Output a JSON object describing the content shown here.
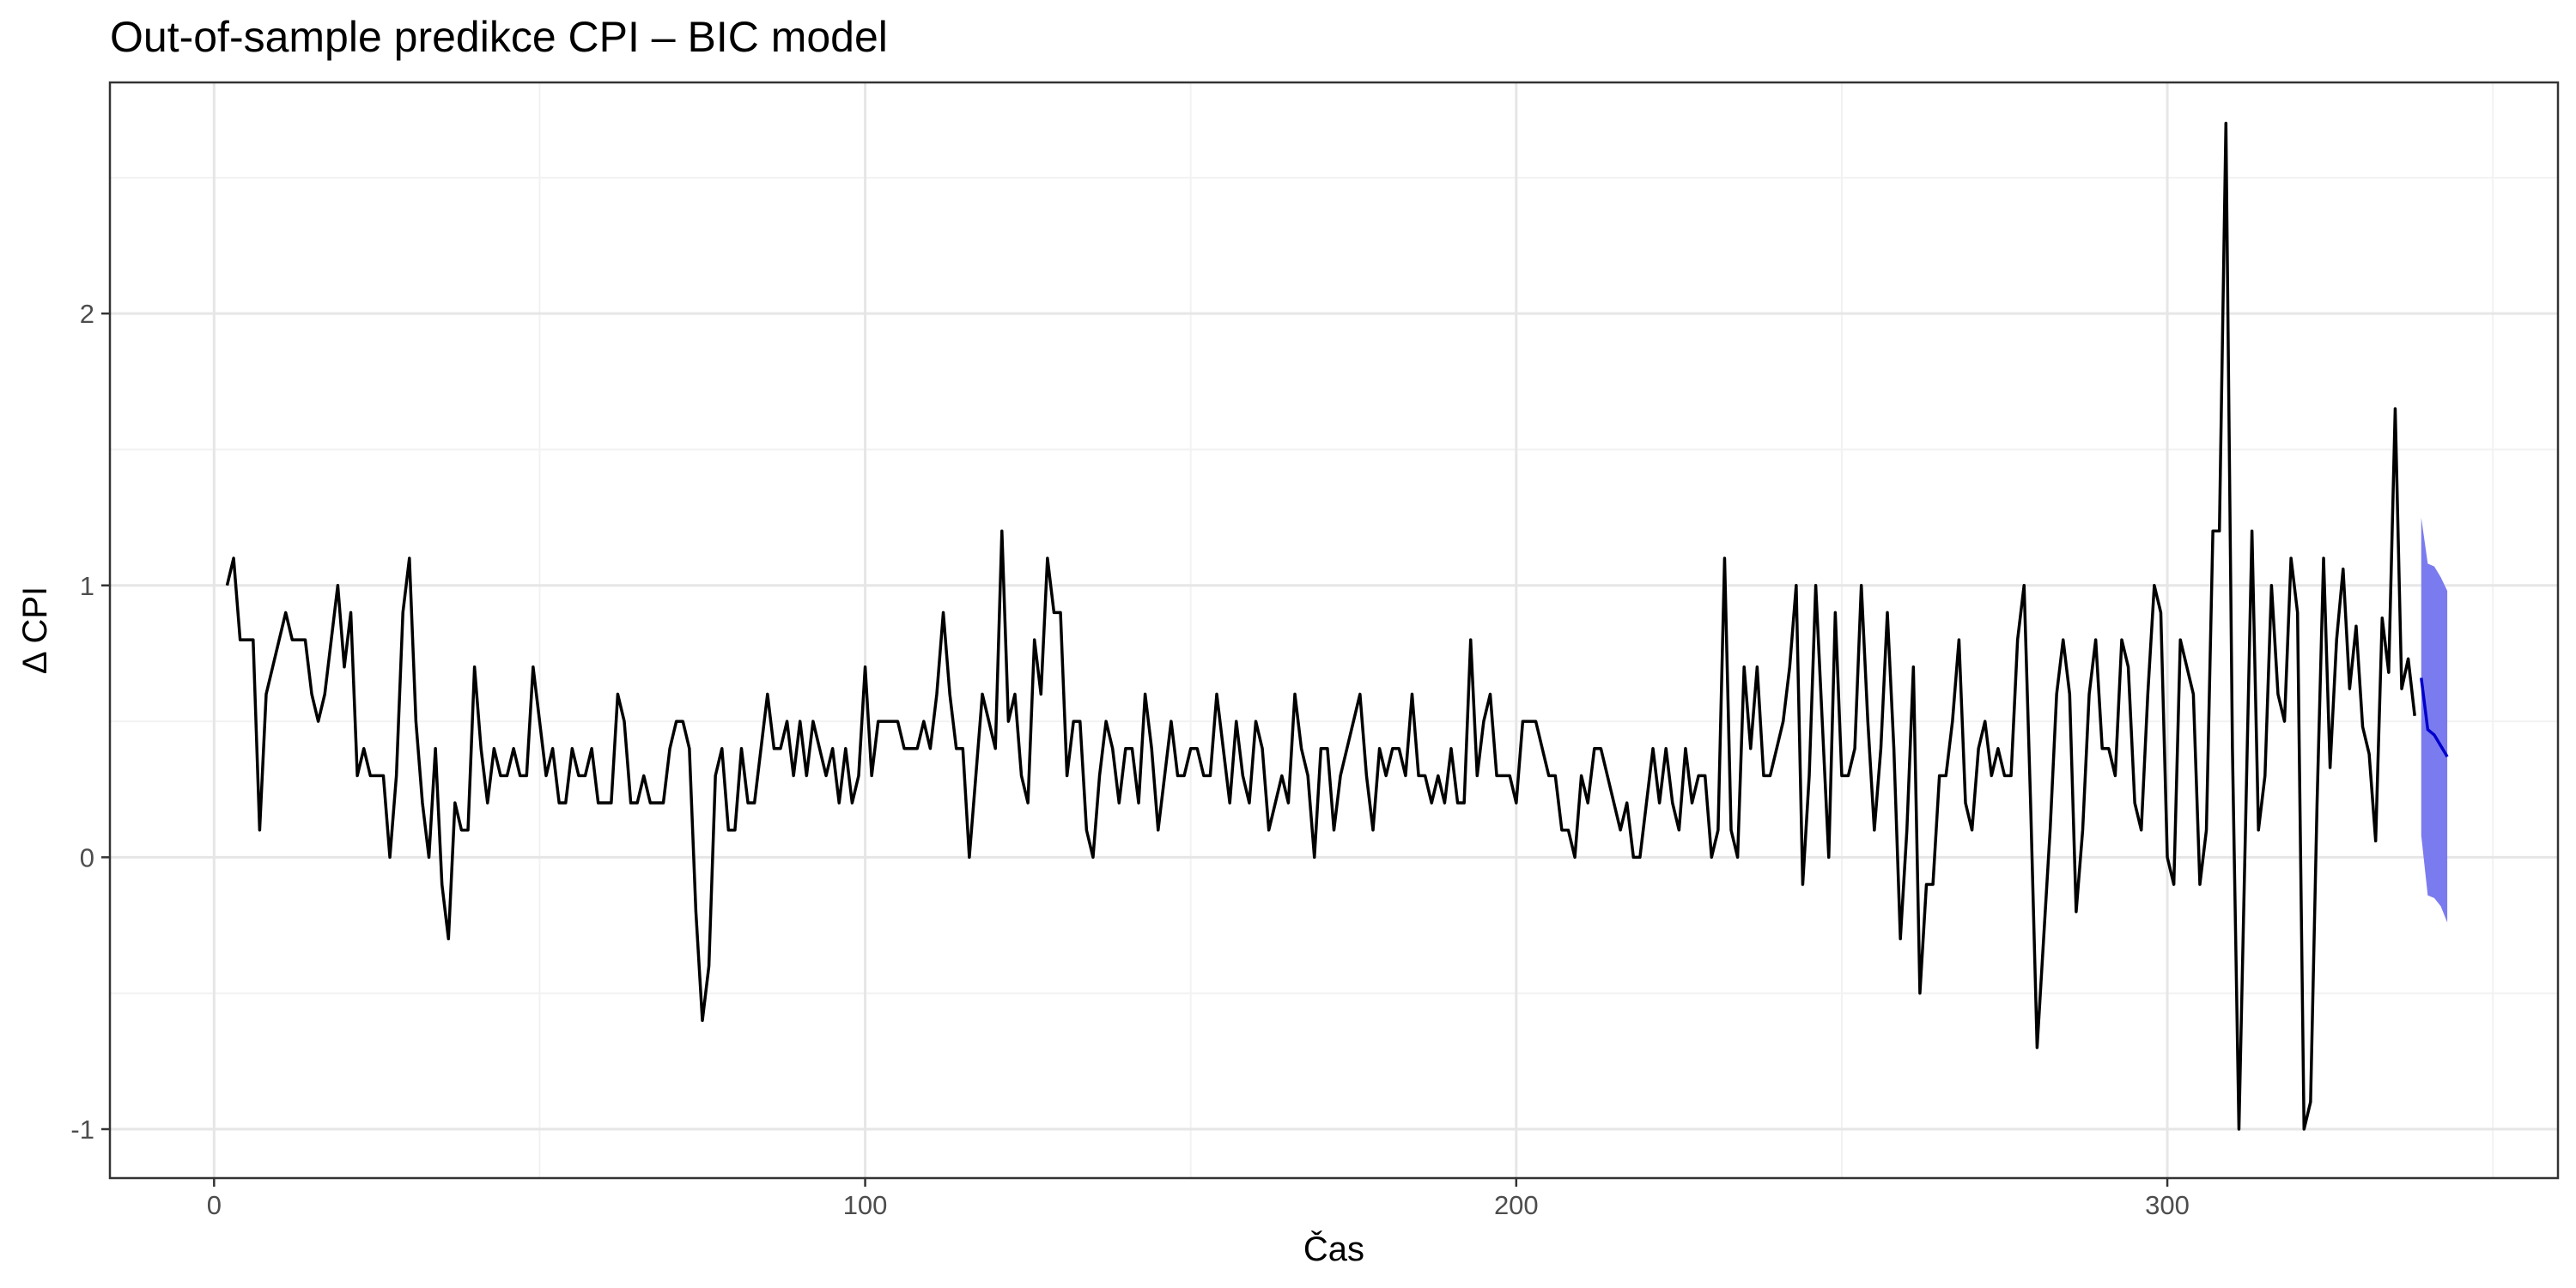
{
  "chart_data": {
    "type": "line",
    "title": "Out-of-sample predikce CPI – BIC model",
    "xlabel": "Čas",
    "ylabel": "Δ CPI",
    "xlim": [
      -16,
      360
    ],
    "ylim": [
      -1.18,
      2.85
    ],
    "grid": true,
    "legend": "none",
    "colors": {
      "actual": "#000000",
      "forecast": "#0000cc",
      "band": "#7b7bf0",
      "grid_major": "#e6e6e6",
      "grid_minor": "#f2f2f2",
      "panel_border": "#333333"
    },
    "x_ticks": [
      0,
      100,
      200,
      300
    ],
    "x_tick_labels": [
      "0",
      "100",
      "200",
      "300"
    ],
    "x_minor_ticks": [
      50,
      150,
      250,
      350
    ],
    "y_ticks": [
      -1,
      0,
      1,
      2
    ],
    "y_tick_labels": [
      "-1",
      "0",
      "1",
      "2"
    ],
    "y_minor_ticks": [
      -0.5,
      0.5,
      1.5,
      2.5
    ],
    "series": [
      {
        "x_start": 2,
        "values": [
          1.0,
          1.1,
          0.8,
          0.8,
          0.8,
          0.1,
          0.6,
          0.7,
          0.8,
          0.9,
          0.8,
          0.8,
          0.8,
          0.6,
          0.5,
          0.6,
          0.8,
          1.0,
          0.7,
          0.9,
          0.3,
          0.4,
          0.3,
          0.3,
          0.3,
          0.0,
          0.3,
          0.9,
          1.1,
          0.5,
          0.2,
          0.0,
          0.4,
          -0.1,
          -0.3,
          0.2,
          0.1,
          0.1,
          0.7,
          0.4,
          0.2,
          0.4,
          0.3,
          0.3,
          0.4,
          0.3,
          0.3,
          0.7,
          0.5,
          0.3,
          0.4,
          0.2,
          0.2,
          0.4,
          0.3,
          0.3,
          0.4,
          0.2,
          0.2,
          0.2,
          0.6,
          0.5,
          0.2,
          0.2,
          0.3,
          0.2,
          0.2,
          0.2,
          0.4,
          0.5,
          0.5,
          0.4,
          -0.2,
          -0.6,
          -0.4,
          0.3,
          0.4,
          0.1,
          0.1,
          0.4,
          0.2,
          0.2,
          0.4,
          0.6,
          0.4,
          0.4,
          0.5,
          0.3,
          0.5,
          0.3,
          0.5,
          0.4,
          0.3,
          0.4,
          0.2,
          0.4,
          0.2,
          0.3,
          0.7,
          0.3,
          0.5,
          0.5,
          0.5,
          0.5,
          0.4,
          0.4,
          0.4,
          0.5,
          0.4,
          0.6,
          0.9,
          0.6,
          0.4,
          0.4,
          0.0,
          0.3,
          0.6,
          0.5,
          0.4,
          1.2,
          0.5,
          0.6,
          0.3,
          0.2,
          0.8,
          0.6,
          1.1,
          0.9,
          0.9,
          0.3,
          0.5,
          0.5,
          0.1,
          0.0,
          0.3,
          0.5,
          0.4,
          0.2,
          0.4,
          0.4,
          0.2,
          0.6,
          0.4,
          0.1,
          0.3,
          0.5,
          0.3,
          0.3,
          0.4,
          0.4,
          0.3,
          0.3,
          0.6,
          0.4,
          0.2,
          0.5,
          0.3,
          0.2,
          0.5,
          0.4,
          0.1,
          0.2,
          0.3,
          0.2,
          0.6,
          0.4,
          0.3,
          0.0,
          0.4,
          0.4,
          0.1,
          0.3,
          0.4,
          0.5,
          0.6,
          0.3,
          0.1,
          0.4,
          0.3,
          0.4,
          0.4,
          0.3,
          0.6,
          0.3,
          0.3,
          0.2,
          0.3,
          0.2,
          0.4,
          0.2,
          0.2,
          0.8,
          0.3,
          0.5,
          0.6,
          0.3,
          0.3,
          0.3,
          0.2,
          0.5,
          0.5,
          0.5,
          0.4,
          0.3,
          0.3,
          0.1,
          0.1,
          0.0,
          0.3,
          0.2,
          0.4,
          0.4,
          0.3,
          0.2,
          0.1,
          0.2,
          0.0,
          0.0,
          0.2,
          0.4,
          0.2,
          0.4,
          0.2,
          0.1,
          0.4,
          0.2,
          0.3,
          0.3,
          0.0,
          0.1,
          1.1,
          0.1,
          0.0,
          0.7,
          0.4,
          0.7,
          0.3,
          0.3,
          0.4,
          0.5,
          0.7,
          1.0,
          -0.1,
          0.3,
          1.0,
          0.5,
          0.0,
          0.9,
          0.3,
          0.3,
          0.4,
          1.0,
          0.5,
          0.1,
          0.4,
          0.9,
          0.4,
          -0.3,
          0.1,
          0.7,
          -0.5,
          -0.1,
          -0.1,
          0.3,
          0.3,
          0.5,
          0.8,
          0.2,
          0.1,
          0.4,
          0.5,
          0.3,
          0.4,
          0.3,
          0.3,
          0.8,
          1.0,
          0.2,
          -0.7,
          -0.3,
          0.1,
          0.6,
          0.8,
          0.6,
          -0.2,
          0.1,
          0.6,
          0.8,
          0.4,
          0.4,
          0.3,
          0.8,
          0.7,
          0.2,
          0.1,
          0.6,
          1.0,
          0.9,
          0.0,
          -0.1,
          0.8,
          0.7,
          0.6,
          -0.1,
          0.1,
          1.2,
          1.2,
          2.7,
          0.4,
          -1.0,
          0.1,
          1.2,
          0.1,
          0.3,
          1.0,
          0.6,
          0.5,
          1.1,
          0.9,
          -1.0,
          -0.9,
          0.2,
          1.1,
          0.33,
          0.8,
          1.06,
          0.62,
          0.85,
          0.48,
          0.38,
          0.06,
          0.88,
          0.68,
          1.65,
          0.62,
          0.73,
          0.52
        ]
      },
      {
        "x": [
          339,
          340,
          341,
          342,
          343
        ],
        "values": [
          0.66,
          0.47,
          0.45,
          0.41,
          0.37
        ],
        "lower": [
          0.08,
          -0.14,
          -0.15,
          -0.18,
          -0.24
        ],
        "upper": [
          1.25,
          1.08,
          1.07,
          1.03,
          0.98
        ]
      }
    ]
  }
}
